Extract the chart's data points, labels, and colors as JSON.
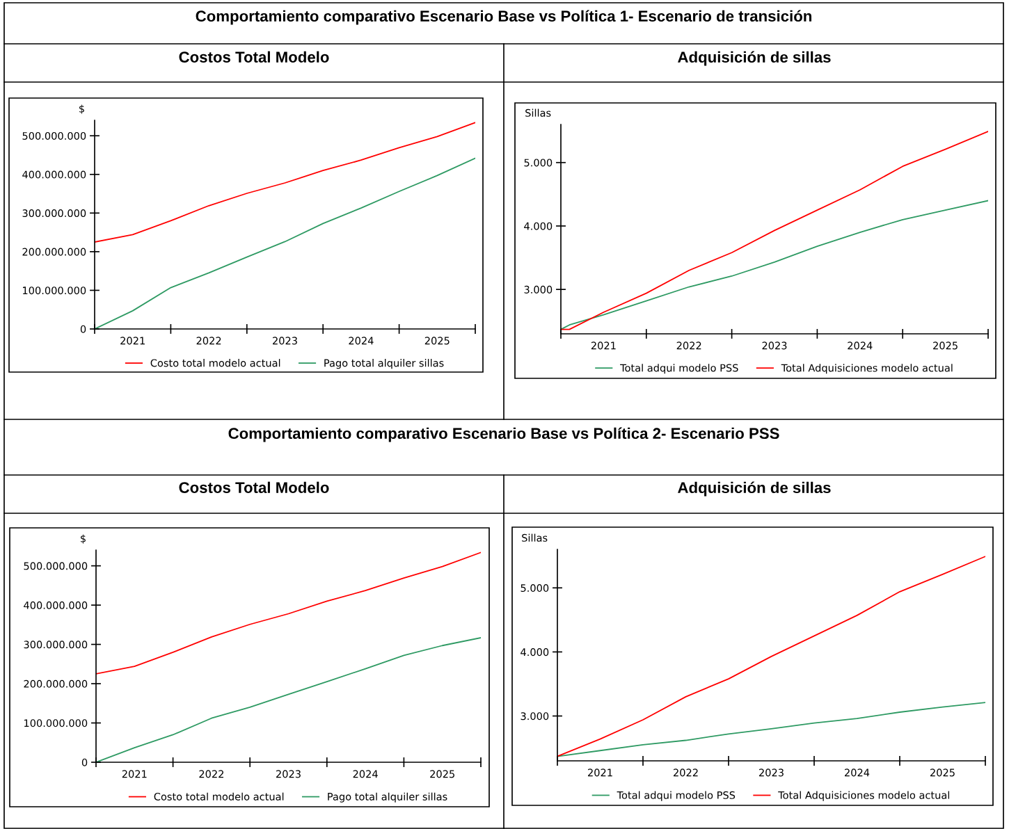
{
  "chart_data": [
    {
      "type": "line",
      "title": "Costos Total Modelo",
      "annotations": [
        "Comportamiento comparativo Escenario Base vs Política 1- Escenario de transición"
      ],
      "ylabel": "$",
      "legend": "bottom",
      "grid": false,
      "marker": "none",
      "line_style": "solid",
      "x": [
        2021,
        2021.5,
        2022,
        2022.5,
        2023,
        2023.5,
        2024,
        2024.5,
        2025,
        2025.5,
        2026
      ],
      "xlim": [
        2021,
        2026
      ],
      "xticks": [
        {
          "value": 2021,
          "label": null
        },
        {
          "value": 2021.5,
          "label": "2021"
        },
        {
          "value": 2022,
          "label": null
        },
        {
          "value": 2022.5,
          "label": "2022"
        },
        {
          "value": 2023,
          "label": null
        },
        {
          "value": 2023.5,
          "label": "2023"
        },
        {
          "value": 2024,
          "label": null
        },
        {
          "value": 2024.5,
          "label": "2024"
        },
        {
          "value": 2025,
          "label": null
        },
        {
          "value": 2025.5,
          "label": "2025"
        },
        {
          "value": 2026,
          "label": null
        }
      ],
      "ylim": [
        0,
        540000000
      ],
      "yticks": [
        0,
        {
          "value": 100000000,
          "label": "100.000.000"
        },
        {
          "value": 200000000,
          "label": "200.000.000"
        },
        {
          "value": 300000000,
          "label": "300.000.000"
        },
        {
          "value": 400000000,
          "label": "400.000.000"
        },
        {
          "value": 500000000,
          "label": "500.000.000"
        }
      ],
      "series": [
        {
          "name": "Costo total modelo actual",
          "color": "#ff0000",
          "values": [
            225000000,
            244000000,
            280000000,
            319000000,
            351000000,
            378000000,
            410000000,
            437000000,
            469000000,
            498000000,
            534000000
          ]
        },
        {
          "name": "Pago total alquiler sillas",
          "color": "#2e9a63",
          "values": [
            0,
            47000000,
            107000000,
            145000000,
            186000000,
            226000000,
            273000000,
            313000000,
            356000000,
            397000000,
            442000000
          ]
        }
      ]
    },
    {
      "type": "line",
      "title": "Adquisición de sillas",
      "ylabel": "Sillas",
      "legend": "bottom",
      "grid": false,
      "marker": "none",
      "line_style": "solid",
      "x": [
        2021,
        2021.1,
        2021.5,
        2022,
        2022.5,
        2023,
        2023.5,
        2024,
        2024.5,
        2025,
        2025.5,
        2026
      ],
      "xlim": [
        2021,
        2026
      ],
      "xticks": [
        {
          "value": 2021,
          "label": null
        },
        {
          "value": 2021.5,
          "label": "2021"
        },
        {
          "value": 2022,
          "label": null
        },
        {
          "value": 2022.5,
          "label": "2022"
        },
        {
          "value": 2023,
          "label": null
        },
        {
          "value": 2023.5,
          "label": "2023"
        },
        {
          "value": 2024,
          "label": null
        },
        {
          "value": 2024.5,
          "label": "2024"
        },
        {
          "value": 2025,
          "label": null
        },
        {
          "value": 2025.5,
          "label": "2025"
        },
        {
          "value": 2026,
          "label": null
        }
      ],
      "ylim": [
        2300,
        5600
      ],
      "yticks": [
        {
          "value": 3000,
          "label": "3.000"
        },
        {
          "value": 4000,
          "label": "4.000"
        },
        {
          "value": 5000,
          "label": "5.000"
        }
      ],
      "series": [
        {
          "name": "Total adqui modelo PSS",
          "color": "#2e9a63",
          "values": [
            2370,
            2440,
            2600,
            2820,
            3040,
            3210,
            3430,
            3680,
            3900,
            4100,
            4250,
            4400
          ]
        },
        {
          "name": "Total Adquisiciones modelo actual",
          "color": "#ff0000",
          "values": [
            2370,
            2370,
            2640,
            2940,
            3300,
            3580,
            3930,
            4250,
            4570,
            4940,
            5210,
            5490
          ]
        }
      ]
    },
    {
      "type": "line",
      "title": "Costos Total Modelo",
      "annotations": [
        "Comportamiento comparativo Escenario Base vs Política 2- Escenario PSS"
      ],
      "ylabel": "$",
      "legend": "bottom",
      "grid": false,
      "marker": "none",
      "line_style": "solid",
      "x": [
        2021,
        2021.5,
        2022,
        2022.5,
        2023,
        2023.5,
        2024,
        2024.5,
        2025,
        2025.5,
        2026
      ],
      "xlim": [
        2021,
        2026
      ],
      "xticks": [
        {
          "value": 2021,
          "label": null
        },
        {
          "value": 2021.5,
          "label": "2021"
        },
        {
          "value": 2022,
          "label": null
        },
        {
          "value": 2022.5,
          "label": "2022"
        },
        {
          "value": 2023,
          "label": null
        },
        {
          "value": 2023.5,
          "label": "2023"
        },
        {
          "value": 2024,
          "label": null
        },
        {
          "value": 2024.5,
          "label": "2024"
        },
        {
          "value": 2025,
          "label": null
        },
        {
          "value": 2025.5,
          "label": "2025"
        },
        {
          "value": 2026,
          "label": null
        }
      ],
      "ylim": [
        0,
        540000000
      ],
      "yticks": [
        0,
        {
          "value": 100000000,
          "label": "100.000.000"
        },
        {
          "value": 200000000,
          "label": "200.000.000"
        },
        {
          "value": 300000000,
          "label": "300.000.000"
        },
        {
          "value": 400000000,
          "label": "400.000.000"
        },
        {
          "value": 500000000,
          "label": "500.000.000"
        }
      ],
      "series": [
        {
          "name": "Costo total modelo actual",
          "color": "#ff0000",
          "values": [
            225000000,
            244000000,
            280000000,
            319000000,
            351000000,
            378000000,
            410000000,
            437000000,
            469000000,
            498000000,
            534000000
          ]
        },
        {
          "name": "Pago total alquiler sillas",
          "color": "#2e9a63",
          "values": [
            0,
            37000000,
            70000000,
            112000000,
            140000000,
            173000000,
            205000000,
            238000000,
            272000000,
            297000000,
            317000000
          ]
        }
      ]
    },
    {
      "type": "line",
      "title": "Adquisición de sillas",
      "ylabel": "Sillas",
      "legend": "bottom",
      "grid": false,
      "marker": "none",
      "line_style": "solid",
      "x": [
        2021,
        2021.5,
        2022,
        2022.5,
        2023,
        2023.5,
        2024,
        2024.5,
        2025,
        2025.5,
        2026
      ],
      "xlim": [
        2021,
        2026
      ],
      "xticks": [
        {
          "value": 2021,
          "label": null
        },
        {
          "value": 2021.5,
          "label": "2021"
        },
        {
          "value": 2022,
          "label": null
        },
        {
          "value": 2022.5,
          "label": "2022"
        },
        {
          "value": 2023,
          "label": null
        },
        {
          "value": 2023.5,
          "label": "2023"
        },
        {
          "value": 2024,
          "label": null
        },
        {
          "value": 2024.5,
          "label": "2024"
        },
        {
          "value": 2025,
          "label": null
        },
        {
          "value": 2025.5,
          "label": "2025"
        },
        {
          "value": 2026,
          "label": null
        }
      ],
      "ylim": [
        2300,
        5600
      ],
      "yticks": [
        {
          "value": 3000,
          "label": "3.000"
        },
        {
          "value": 4000,
          "label": "4.000"
        },
        {
          "value": 5000,
          "label": "5.000"
        }
      ],
      "series": [
        {
          "name": "Total adqui modelo PSS",
          "color": "#2e9a63",
          "values": [
            2370,
            2460,
            2550,
            2620,
            2720,
            2800,
            2890,
            2960,
            3060,
            3140,
            3210
          ]
        },
        {
          "name": "Total Adquisiciones modelo actual",
          "color": "#ff0000",
          "values": [
            2370,
            2640,
            2940,
            3300,
            3580,
            3930,
            4250,
            4570,
            4940,
            5210,
            5490
          ]
        }
      ]
    }
  ]
}
